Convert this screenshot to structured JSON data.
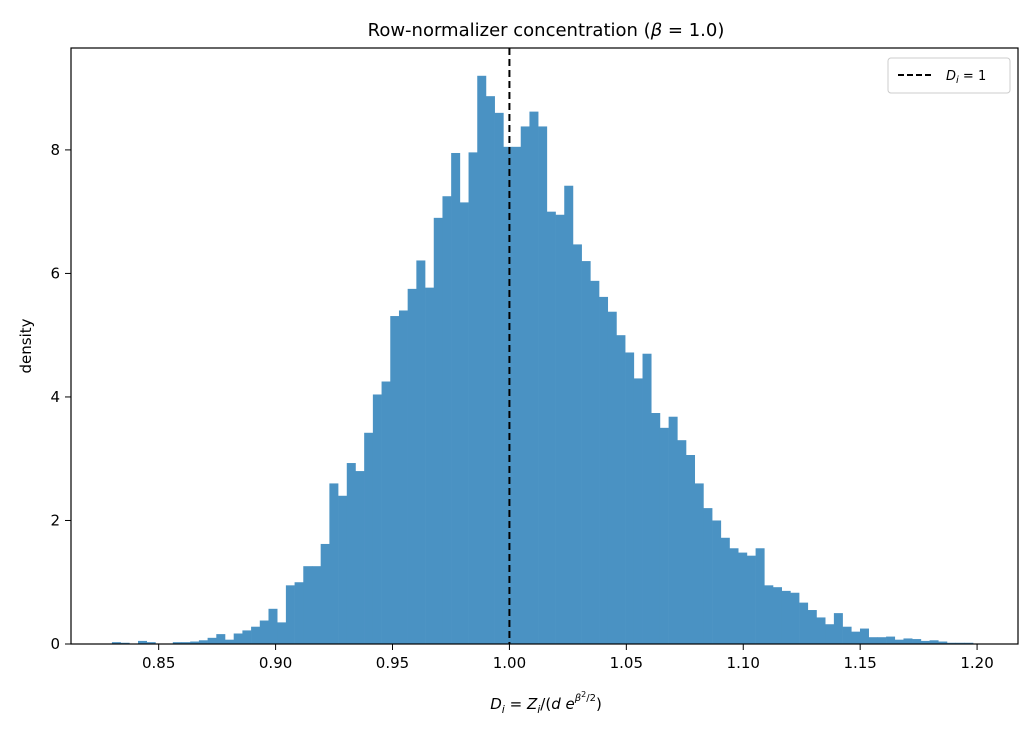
{
  "chart_data": {
    "type": "bar",
    "title": "Row-normalizer concentration (β = 1.0)",
    "xlabel": "D_i = Z_i/(d e^{β²/2})",
    "ylabel": "density",
    "xlim": [
      0.8125,
      1.2175
    ],
    "ylim": [
      0,
      9.65
    ],
    "xticks": [
      "0.85",
      "0.90",
      "0.95",
      "1.00",
      "1.05",
      "1.10",
      "1.15",
      "1.20"
    ],
    "yticks": [
      "0",
      "2",
      "4",
      "6",
      "8"
    ],
    "bin_start": 0.83,
    "bin_width": 0.00372,
    "values": [
      0.03,
      0.02,
      0.0,
      0.05,
      0.03,
      0.0,
      0.0,
      0.03,
      0.03,
      0.04,
      0.06,
      0.1,
      0.16,
      0.07,
      0.17,
      0.22,
      0.28,
      0.38,
      0.57,
      0.35,
      0.95,
      1.0,
      1.26,
      1.26,
      1.62,
      2.6,
      2.4,
      2.93,
      2.8,
      3.42,
      4.04,
      4.25,
      5.31,
      5.4,
      5.75,
      6.21,
      5.77,
      6.9,
      7.25,
      7.95,
      7.15,
      7.96,
      9.2,
      8.87,
      8.6,
      8.05,
      8.05,
      8.38,
      8.62,
      8.38,
      7.0,
      6.95,
      7.42,
      6.47,
      6.2,
      5.88,
      5.62,
      5.38,
      5.0,
      4.72,
      4.3,
      4.7,
      3.74,
      3.5,
      3.68,
      3.3,
      3.06,
      2.6,
      2.2,
      2.0,
      1.72,
      1.55,
      1.48,
      1.43,
      1.55,
      0.95,
      0.92,
      0.86,
      0.83,
      0.67,
      0.55,
      0.43,
      0.32,
      0.5,
      0.28,
      0.2,
      0.25,
      0.11,
      0.11,
      0.12,
      0.07,
      0.09,
      0.08,
      0.05,
      0.06,
      0.04,
      0.02,
      0.02,
      0.02,
      0.0,
      0.0,
      0.0,
      0.0,
      0.0,
      0.0,
      0.0,
      0.02,
      0.0
    ],
    "bar_color": "#4a92c3",
    "vline": {
      "x": 1.0,
      "style": "dashed",
      "color": "#000000",
      "label": "D_i = 1"
    },
    "legend_placement": "top-right",
    "grid": false
  }
}
